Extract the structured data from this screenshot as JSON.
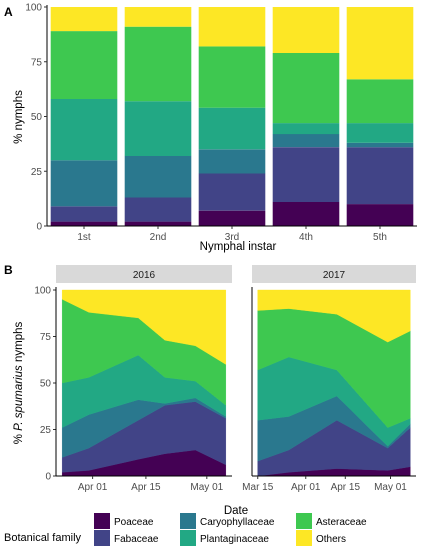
{
  "colors": {
    "Poaceae": "#440154",
    "Fabaceae": "#414487",
    "Caryophyllaceae": "#2a788e",
    "Plantaginaceae": "#22a884",
    "Asteraceae": "#3ec850",
    "Others": "#fde725",
    "strip_fill": "#d9d9d9"
  },
  "chart_data": [
    {
      "panel": "A",
      "type": "bar",
      "stacked": true,
      "xlabel": "Nymphal instar",
      "ylabel": "% nymphs",
      "ylim": [
        0,
        100
      ],
      "yticks": [
        0,
        25,
        50,
        75,
        100
      ],
      "categories": [
        "1st",
        "2nd",
        "3rd",
        "4th",
        "5th"
      ],
      "series": [
        {
          "name": "Poaceae",
          "values": [
            2,
            2,
            7,
            11,
            10
          ]
        },
        {
          "name": "Fabaceae",
          "values": [
            7,
            11,
            17,
            25,
            26
          ]
        },
        {
          "name": "Caryophyllaceae",
          "values": [
            21,
            19,
            11,
            6,
            2
          ]
        },
        {
          "name": "Plantaginaceae",
          "values": [
            28,
            25,
            19,
            5,
            9
          ]
        },
        {
          "name": "Asteraceae",
          "values": [
            31,
            34,
            28,
            32,
            20
          ]
        },
        {
          "name": "Others",
          "values": [
            11,
            9,
            18,
            21,
            33
          ]
        }
      ],
      "grid": false
    },
    {
      "panel": "B",
      "type": "area",
      "stacked": true,
      "xlabel": "Date",
      "ylabel_prefix": "% ",
      "ylabel_italic": "P. spumarius",
      "ylabel_suffix": " nymphs",
      "ylim": [
        0,
        100
      ],
      "yticks": [
        0,
        25,
        50,
        75,
        100
      ],
      "facets": [
        {
          "strip": "2016",
          "xticks": [
            "Apr 01",
            "Apr 15",
            "May 01"
          ],
          "x": [
            "2016-03-24",
            "2016-03-31",
            "2016-04-13",
            "2016-04-20",
            "2016-04-28",
            "2016-05-06"
          ],
          "series": [
            {
              "name": "Poaceae",
              "values": [
                2,
                3,
                9,
                12,
                14,
                6
              ]
            },
            {
              "name": "Fabaceae",
              "values": [
                8,
                12,
                21,
                26,
                26,
                25
              ]
            },
            {
              "name": "Caryophyllaceae",
              "values": [
                16,
                18,
                11,
                1,
                2,
                1
              ]
            },
            {
              "name": "Plantaginaceae",
              "values": [
                24,
                20,
                24,
                14,
                9,
                6
              ]
            },
            {
              "name": "Asteraceae",
              "values": [
                45,
                35,
                20,
                20,
                19,
                22
              ]
            },
            {
              "name": "Others",
              "values": [
                5,
                12,
                15,
                27,
                30,
                40
              ]
            }
          ]
        },
        {
          "strip": "2017",
          "xticks": [
            "Mar 15",
            "Apr 01",
            "Apr 15",
            "May 01"
          ],
          "x": [
            "2017-03-15",
            "2017-03-26",
            "2017-04-12",
            "2017-04-30",
            "2017-05-08"
          ],
          "series": [
            {
              "name": "Poaceae",
              "values": [
                0,
                2,
                4,
                3,
                5
              ]
            },
            {
              "name": "Fabaceae",
              "values": [
                8,
                12,
                26,
                12,
                21
              ]
            },
            {
              "name": "Caryophyllaceae",
              "values": [
                22,
                18,
                13,
                1,
                2
              ]
            },
            {
              "name": "Plantaginaceae",
              "values": [
                27,
                32,
                14,
                10,
                3
              ]
            },
            {
              "name": "Asteraceae",
              "values": [
                32,
                26,
                30,
                46,
                47
              ]
            },
            {
              "name": "Others",
              "values": [
                11,
                10,
                13,
                28,
                22
              ]
            }
          ]
        }
      ]
    }
  ],
  "legend": {
    "title": "Botanical family",
    "items": [
      "Poaceae",
      "Fabaceae",
      "Caryophyllaceae",
      "Plantaginaceae",
      "Asteraceae",
      "Others"
    ]
  }
}
